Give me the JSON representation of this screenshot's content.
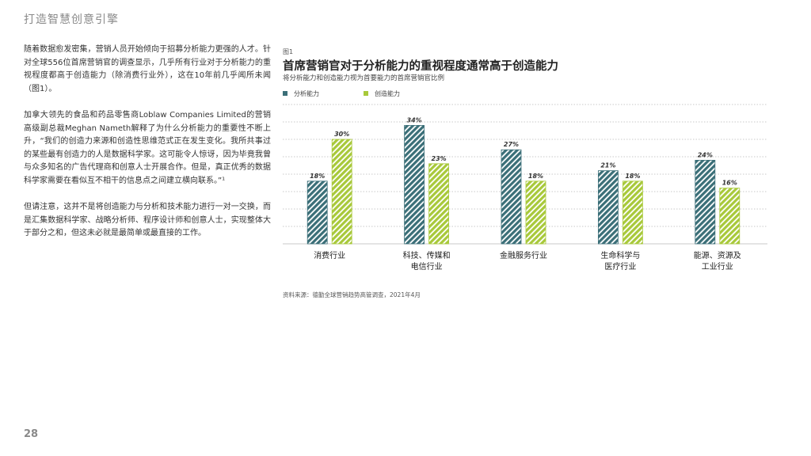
{
  "header": {
    "title": "打造智慧创意引擎"
  },
  "page_number": "28",
  "body_text": [
    "随着数据愈发密集，营销人员开始倾向于招募分析能力更强的人才。针对全球556位首席营销官的调查显示，几乎所有行业对于分析能力的重视程度都高于创造能力（除消费行业外），这在10年前几乎闻所未闻（图1）。",
    "加拿大领先的食品和药品零售商Loblaw Companies Limited的营销高级副总裁Meghan Nameth解释了为什么分析能力的重要性不断上升，“我们的创造力来源和创造性思维范式正在发生变化。我所共事过的某些最有创造力的人是数据科学家。这可能令人惊讶，因为毕竟我曾与众多知名的广告代理商和创意人士开展合作。但是，真正优秀的数据科学家需要在看似互不相干的信息点之间建立横向联系。”¹",
    "但请注意，这并不是将创造能力与分析和技术能力进行一对一交换，而是汇集数据科学家、战略分析师、程序设计师和创意人士，实现整体大于部分之和，但这未必就是最简单或最直接的工作。"
  ],
  "figure": {
    "label": "图1",
    "title": "首席营销官对于分析能力的重视程度通常高于创造能力",
    "subtitle": "将分析能力和创造能力视为首要能力的首席营销官比例",
    "source": "资料来源：德勤全球营销趋势高管调查，2021年4月"
  },
  "colors": {
    "analytic": "#3b6f78",
    "creative": "#a8c93a"
  },
  "chart_data": {
    "type": "bar",
    "categories": [
      "消费行业",
      "科技、传媒和\n电信行业",
      "金融服务行业",
      "生命科学与\n医疗行业",
      "能源、资源及\n工业行业"
    ],
    "series": [
      {
        "name": "分析能力",
        "values": [
          18,
          34,
          27,
          21,
          24
        ]
      },
      {
        "name": "创造能力",
        "values": [
          30,
          23,
          18,
          18,
          16
        ]
      }
    ],
    "value_suffix": "%",
    "ylim": [
      0,
      40
    ],
    "grid": true,
    "legend": "top-left"
  }
}
